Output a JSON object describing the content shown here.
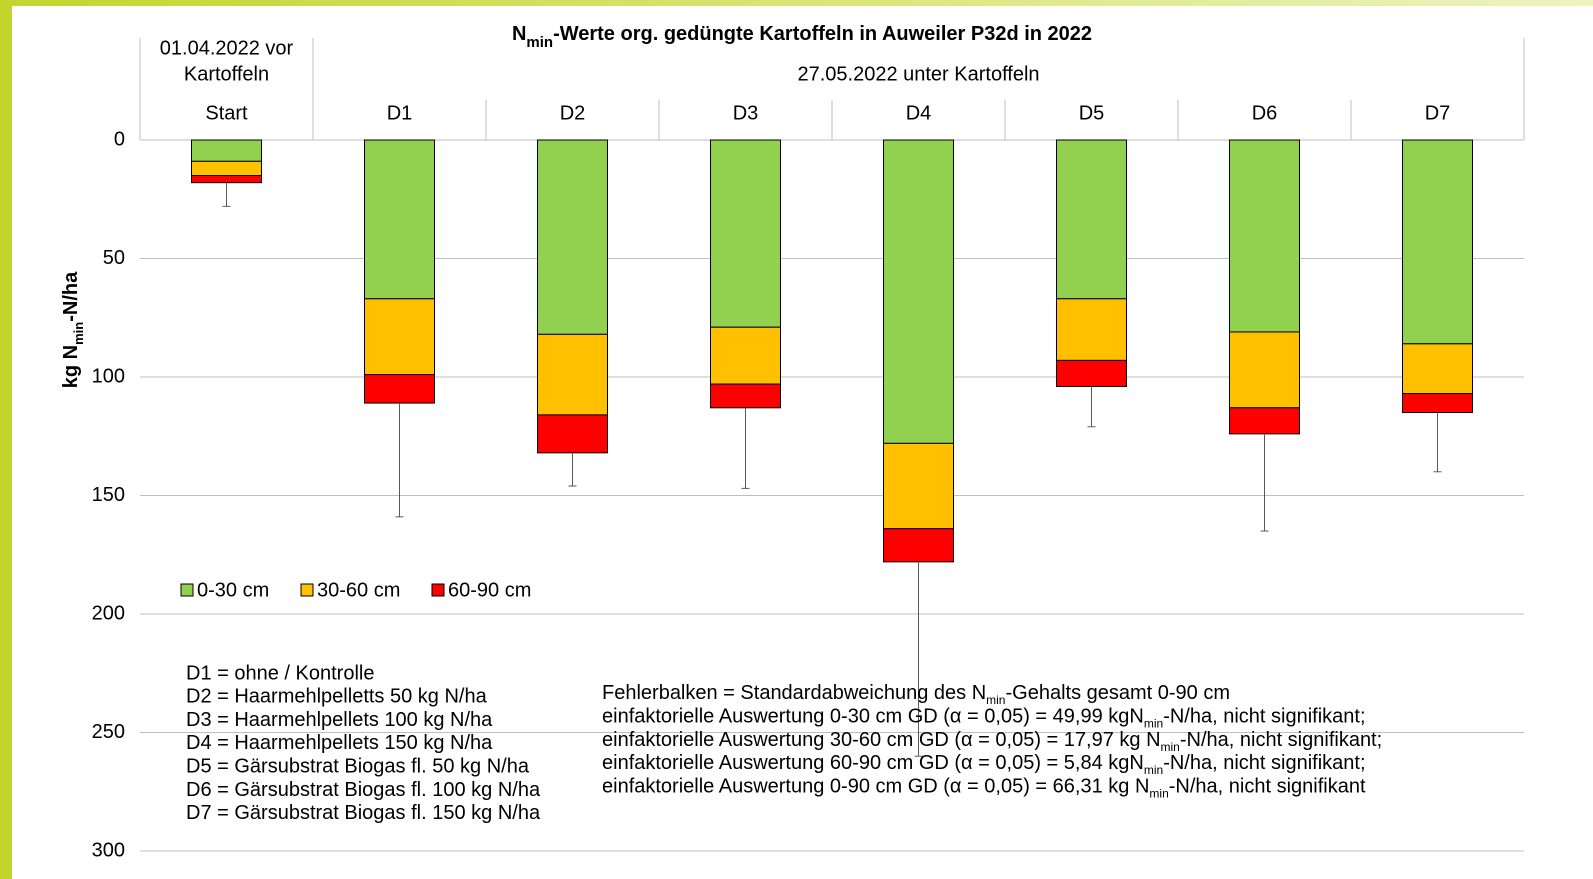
{
  "chart_data": {
    "type": "stacked_bar",
    "title": {
      "before": "N",
      "sub": "min",
      "after": "-Werte org. gedüngte Kartoffeln in Auweiler P32d in 2022"
    },
    "y_label": {
      "before": "kg N",
      "sub": "min",
      "after": "-N/ha"
    },
    "header_groups": [
      {
        "lines": [
          "01.04.2022 vor",
          "Kartoffeln"
        ]
      },
      {
        "lines": [
          "27.05.2022 unter Kartoffeln"
        ]
      }
    ],
    "categories": [
      "Start",
      "D1",
      "D2",
      "D3",
      "D4",
      "D5",
      "D6",
      "D7"
    ],
    "series": [
      {
        "name": "0-30 cm",
        "color": "#92d050",
        "values": [
          9,
          67,
          82,
          79,
          128,
          67,
          81,
          86
        ]
      },
      {
        "name": "30-60 cm",
        "color": "#ffc000",
        "values": [
          6,
          32,
          34,
          24,
          36,
          26,
          32,
          21
        ]
      },
      {
        "name": "60-90 cm",
        "color": "#ff0000",
        "values": [
          3,
          12,
          16,
          10,
          14,
          11,
          11,
          8
        ]
      }
    ],
    "errors": [
      10,
      48,
      14,
      34,
      82,
      17,
      41,
      25
    ],
    "ylim": [
      0,
      300
    ],
    "yticks": [
      0,
      50,
      100,
      150,
      200,
      250,
      300
    ],
    "y_inverted": true,
    "grid": true,
    "legend": "left",
    "notes_left": [
      "D1 = ohne / Kontrolle",
      "D2 = Haarmehlpelletts  50 kg N/ha",
      "D3 = Haarmehlpellets  100 kg N/ha",
      "D4 = Haarmehlpellets  150 kg N/ha",
      "D5 = Gärsubstrat Biogas fl. 50 kg N/ha",
      "D6 = Gärsubstrat Biogas fl. 100 kg N/ha",
      "D7 = Gärsubstrat Biogas fl. 150 kg N/ha"
    ],
    "notes_right": [
      {
        "before": "Fehlerbalken = Standardabweichung  des N",
        "sub": "min",
        "after": "-Gehalts gesamt 0-90 cm"
      },
      {
        "before": "einfaktorielle Auswertung  0-30 cm GD  (α = 0,05) = 49,99 kgN",
        "sub": "min",
        "after": "-N/ha, nicht signifikant;"
      },
      {
        "before": "einfaktorielle Auswertung  30-60 cm GD  (α = 0,05) = 17,97 kg N",
        "sub": "min",
        "after": "-N/ha, nicht signifikant;"
      },
      {
        "before": "einfaktorielle Auswertung  60-90 cm GD  (α = 0,05) = 5,84 kgN",
        "sub": "min",
        "after": "-N/ha, nicht signifikant;"
      },
      {
        "before": "einfaktorielle Auswertung  0-90 cm GD  (α = 0,05) = 66,31 kg N",
        "sub": "min",
        "after": "-N/ha, nicht signifikant"
      }
    ]
  }
}
